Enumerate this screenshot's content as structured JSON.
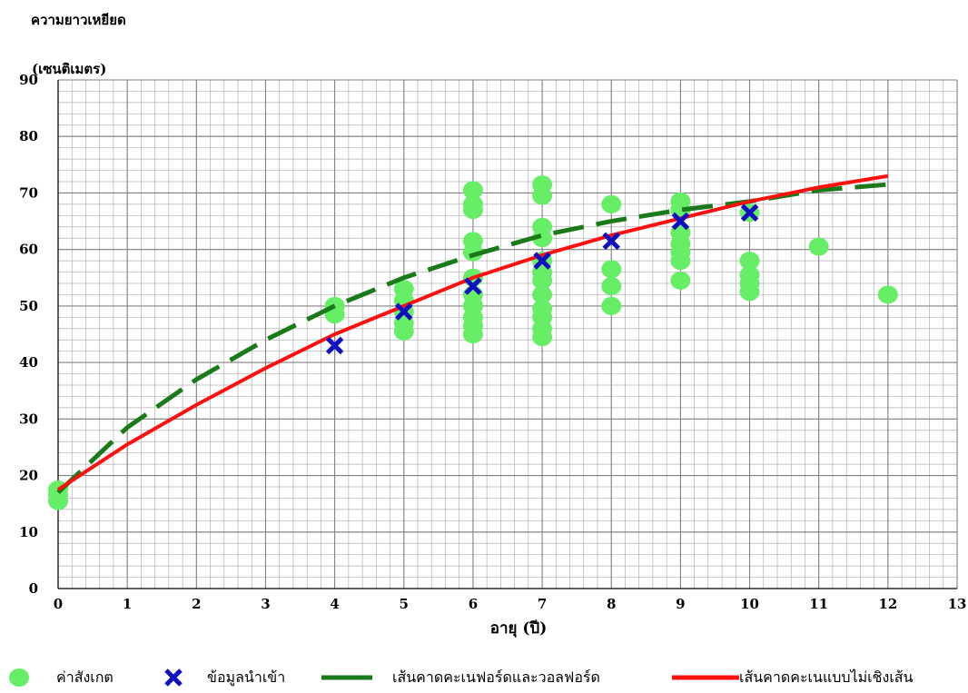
{
  "chart_data": {
    "type": "scatter",
    "ylabel_line1": "ความยาวเหยียด",
    "ylabel_line2": "(เซนติเมตร)",
    "xlabel": "อายุ (ปี)",
    "xlim": [
      0,
      13
    ],
    "ylim": [
      0,
      90
    ],
    "xticks": [
      "0",
      "1",
      "2",
      "3",
      "4",
      "5",
      "6",
      "7",
      "8",
      "9",
      "10",
      "11",
      "12",
      "13"
    ],
    "yticks": [
      "0",
      "10",
      "20",
      "30",
      "40",
      "50",
      "60",
      "70",
      "80",
      "90"
    ],
    "grid": true,
    "legend_position": "bottom",
    "colors": {
      "observed": "#66ee66",
      "input": "#1010c0",
      "vbgf": "#1a7a1a",
      "nonlinear": "#ff1010",
      "grid": "#b0b0b0"
    },
    "series": [
      {
        "name": "ค่าสังเกต",
        "kind": "scatter",
        "points": [
          [
            0,
            15.5
          ],
          [
            0,
            16.5
          ],
          [
            0,
            17.5
          ],
          [
            4,
            48.5
          ],
          [
            4,
            50
          ],
          [
            5,
            45.5
          ],
          [
            5,
            47
          ],
          [
            5,
            49
          ],
          [
            5,
            51
          ],
          [
            5,
            53
          ],
          [
            6,
            45
          ],
          [
            6,
            46.5
          ],
          [
            6,
            48
          ],
          [
            6,
            50
          ],
          [
            6,
            52
          ],
          [
            6,
            55
          ],
          [
            6,
            59.5
          ],
          [
            6,
            61.5
          ],
          [
            6,
            67
          ],
          [
            6,
            68
          ],
          [
            6,
            70.5
          ],
          [
            7,
            44.5
          ],
          [
            7,
            46
          ],
          [
            7,
            48
          ],
          [
            7,
            49.5
          ],
          [
            7,
            52
          ],
          [
            7,
            54.5
          ],
          [
            7,
            56
          ],
          [
            7,
            58
          ],
          [
            7,
            62
          ],
          [
            7,
            64
          ],
          [
            7,
            69.5
          ],
          [
            7,
            71.5
          ],
          [
            8,
            50
          ],
          [
            8,
            53.5
          ],
          [
            8,
            56.5
          ],
          [
            8,
            68
          ],
          [
            9,
            54.5
          ],
          [
            9,
            58
          ],
          [
            9,
            59.5
          ],
          [
            9,
            61
          ],
          [
            9,
            63
          ],
          [
            9,
            67
          ],
          [
            9,
            68.5
          ],
          [
            10,
            52.5
          ],
          [
            10,
            54
          ],
          [
            10,
            55.5
          ],
          [
            10,
            58
          ],
          [
            10,
            66.5
          ],
          [
            11,
            60.5
          ],
          [
            12,
            52
          ]
        ]
      },
      {
        "name": "ข้อมูลนำเข้า",
        "kind": "marker_x",
        "points": [
          [
            4,
            43
          ],
          [
            5,
            49
          ],
          [
            6,
            53.5
          ],
          [
            7,
            58
          ],
          [
            8,
            61.5
          ],
          [
            9,
            65
          ],
          [
            10,
            66.5
          ]
        ]
      },
      {
        "name": "เส้นคาดคะเนฟอร์ดและวอลฟอร์ด",
        "kind": "dashed_line",
        "points": [
          [
            0,
            17
          ],
          [
            1,
            28.5
          ],
          [
            2,
            37
          ],
          [
            3,
            44
          ],
          [
            4,
            50
          ],
          [
            5,
            55
          ],
          [
            6,
            59
          ],
          [
            7,
            62.5
          ],
          [
            8,
            65
          ],
          [
            9,
            67
          ],
          [
            10,
            68.5
          ],
          [
            11,
            70.5
          ],
          [
            12,
            71.5
          ]
        ]
      },
      {
        "name": "เส้นคาดคะเนแบบไม่เชิงเส้น",
        "kind": "line",
        "points": [
          [
            0,
            17.5
          ],
          [
            1,
            25.5
          ],
          [
            2,
            32.5
          ],
          [
            3,
            39
          ],
          [
            4,
            45
          ],
          [
            5,
            50
          ],
          [
            6,
            55
          ],
          [
            7,
            59
          ],
          [
            8,
            62.5
          ],
          [
            9,
            65.5
          ],
          [
            10,
            68.5
          ],
          [
            11,
            71
          ],
          [
            12,
            73
          ]
        ]
      }
    ]
  }
}
